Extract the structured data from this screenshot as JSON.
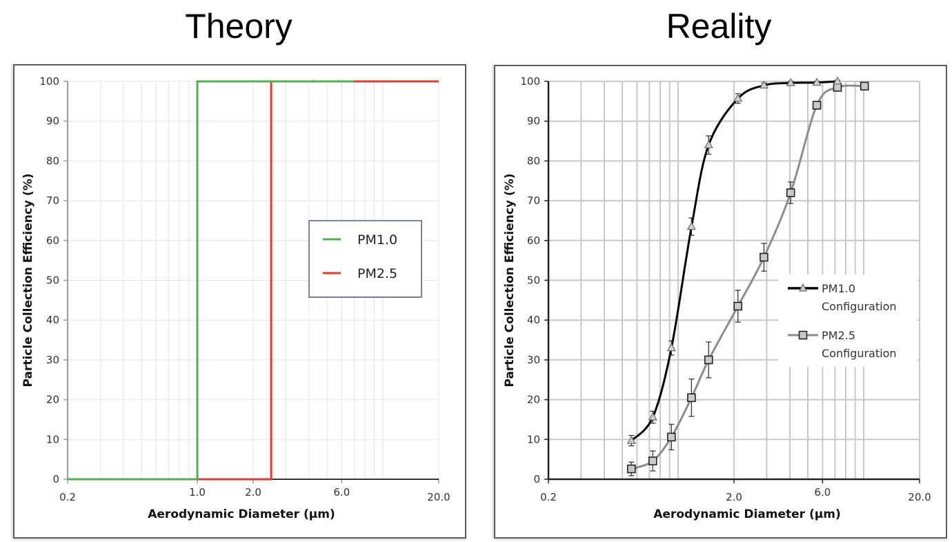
{
  "titles": {
    "left": "Theory",
    "right": "Reality"
  },
  "chart_data": [
    {
      "type": "line",
      "title": "Theory",
      "xlabel": "Aerodynamic Diameter (µm)",
      "ylabel": "Particle Collection Efficiency (%)",
      "xscale": "log",
      "xlim": [
        0.2,
        20.0
      ],
      "ylim": [
        0,
        100
      ],
      "xticks": [
        0.2,
        1.0,
        2.0,
        6.0,
        20.0
      ],
      "xtick_labels": [
        "0.2",
        "1.0",
        "2.0",
        "6.0",
        "20.0"
      ],
      "yticks": [
        0,
        10,
        20,
        30,
        40,
        50,
        60,
        70,
        80,
        90,
        100
      ],
      "grid": true,
      "legend_position": "center-right",
      "series": [
        {
          "name": "PM1.0",
          "color": "#4caf50",
          "style": "step",
          "x": [
            0.2,
            1.0,
            1.0,
            20.0
          ],
          "y": [
            0,
            0,
            100,
            100
          ]
        },
        {
          "name": "PM2.5",
          "color": "#e53935",
          "style": "step",
          "x": [
            0.2,
            2.5,
            2.5,
            20.0
          ],
          "y": [
            0,
            0,
            100,
            100
          ]
        }
      ]
    },
    {
      "type": "line",
      "title": "Reality",
      "xlabel": "Aerodynamic Diameter (µm)",
      "ylabel": "Particle Collection Efficiency (%)",
      "xscale": "log",
      "xlim": [
        0.2,
        20.0
      ],
      "ylim": [
        0,
        100
      ],
      "xticks": [
        0.2,
        2.0,
        6.0,
        20.0
      ],
      "xtick_labels": [
        "0.2",
        "2.0",
        "6.0",
        "20.0"
      ],
      "yticks": [
        0,
        10,
        20,
        30,
        40,
        50,
        60,
        70,
        80,
        90,
        100
      ],
      "grid": true,
      "legend_position": "center-right",
      "series": [
        {
          "name": "PM1.0 Configuration",
          "legend_lines": [
            "PM1.0",
            "Configuration"
          ],
          "color": "#000000",
          "marker": "triangle",
          "x": [
            0.56,
            0.73,
            0.92,
            1.18,
            1.46,
            2.1,
            2.9,
            4.04,
            5.59,
            7.22
          ],
          "y": [
            9.7,
            15.6,
            33.0,
            63.5,
            84.0,
            95.7,
            99.0,
            99.6,
            99.7,
            100.0
          ],
          "err": [
            1.3,
            1.5,
            1.8,
            2.2,
            2.3,
            1.2,
            0.6,
            0.4,
            0.3,
            0.3
          ]
        },
        {
          "name": "PM2.5 Configuration",
          "legend_lines": [
            "PM2.5",
            "Configuration"
          ],
          "color": "#8c8c8c",
          "marker": "square",
          "x": [
            0.56,
            0.73,
            0.92,
            1.18,
            1.46,
            2.1,
            2.9,
            4.04,
            5.59,
            7.22,
            10.1
          ],
          "y": [
            2.6,
            4.6,
            10.6,
            20.5,
            30.0,
            43.5,
            55.8,
            72.0,
            94.0,
            98.5,
            98.8
          ],
          "err": [
            1.7,
            2.5,
            3.2,
            4.7,
            4.5,
            4.0,
            3.5,
            2.7,
            0.8,
            0.6,
            0.5
          ]
        }
      ]
    }
  ]
}
